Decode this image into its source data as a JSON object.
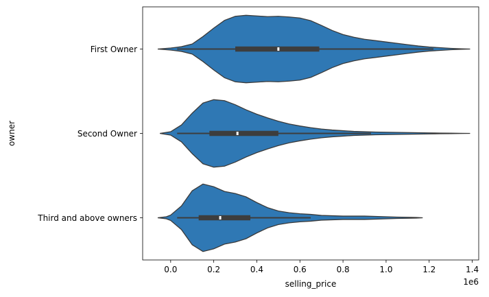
{
  "chart_data": {
    "type": "violin",
    "orientation": "horizontal",
    "xlabel": "selling_price",
    "ylabel": "owner",
    "x_offset_label": "1e6",
    "xlim": [
      -0.13,
      1.43
    ],
    "xticks": [
      0.0,
      0.2,
      0.4,
      0.6,
      0.8,
      1.0,
      1.2,
      1.4
    ],
    "xtick_labels": [
      "0.0",
      "0.2",
      "0.4",
      "0.6",
      "0.8",
      "1.0",
      "1.2",
      "1.4"
    ],
    "categories": [
      "First Owner",
      "Second Owner",
      "Third and above owners"
    ],
    "fill_color": "#2f78b4",
    "edge_color": "#3a3a3a",
    "box_color": "#3d3d3d",
    "median_color": "#ffffff",
    "grid": false,
    "legend": "none",
    "violins": [
      {
        "name": "First Owner",
        "density": [
          [
            -0.06,
            0
          ],
          [
            0.0,
            0.03
          ],
          [
            0.05,
            0.07
          ],
          [
            0.1,
            0.15
          ],
          [
            0.15,
            0.37
          ],
          [
            0.2,
            0.62
          ],
          [
            0.25,
            0.85
          ],
          [
            0.3,
            0.97
          ],
          [
            0.35,
            1.0
          ],
          [
            0.4,
            0.98
          ],
          [
            0.45,
            0.96
          ],
          [
            0.5,
            0.97
          ],
          [
            0.55,
            0.95
          ],
          [
            0.6,
            0.92
          ],
          [
            0.65,
            0.84
          ],
          [
            0.7,
            0.7
          ],
          [
            0.75,
            0.55
          ],
          [
            0.8,
            0.43
          ],
          [
            0.85,
            0.35
          ],
          [
            0.9,
            0.29
          ],
          [
            0.95,
            0.25
          ],
          [
            1.0,
            0.21
          ],
          [
            1.05,
            0.17
          ],
          [
            1.1,
            0.13
          ],
          [
            1.15,
            0.09
          ],
          [
            1.2,
            0.06
          ],
          [
            1.25,
            0.04
          ],
          [
            1.3,
            0.02
          ],
          [
            1.35,
            0.006
          ],
          [
            1.39,
            0
          ]
        ],
        "whisker": [
          0.03,
          1.22
        ],
        "q1": 0.3,
        "q3": 0.69,
        "median": 0.5
      },
      {
        "name": "Second Owner",
        "density": [
          [
            -0.05,
            0
          ],
          [
            0.0,
            0.05
          ],
          [
            0.05,
            0.25
          ],
          [
            0.1,
            0.6
          ],
          [
            0.15,
            0.9
          ],
          [
            0.2,
            1.0
          ],
          [
            0.25,
            0.97
          ],
          [
            0.3,
            0.85
          ],
          [
            0.35,
            0.7
          ],
          [
            0.4,
            0.57
          ],
          [
            0.45,
            0.46
          ],
          [
            0.5,
            0.36
          ],
          [
            0.55,
            0.28
          ],
          [
            0.6,
            0.22
          ],
          [
            0.65,
            0.17
          ],
          [
            0.7,
            0.13
          ],
          [
            0.75,
            0.1
          ],
          [
            0.8,
            0.08
          ],
          [
            0.85,
            0.06
          ],
          [
            0.9,
            0.05
          ],
          [
            0.95,
            0.04
          ],
          [
            1.0,
            0.035
          ],
          [
            1.05,
            0.03
          ],
          [
            1.1,
            0.025
          ],
          [
            1.15,
            0.02
          ],
          [
            1.2,
            0.015
          ],
          [
            1.25,
            0.01
          ],
          [
            1.3,
            0.006
          ],
          [
            1.35,
            0.003
          ],
          [
            1.39,
            0
          ]
        ],
        "whisker": [
          0.03,
          0.93
        ],
        "q1": 0.18,
        "q3": 0.5,
        "median": 0.31
      },
      {
        "name": "Third and above owners",
        "density": [
          [
            -0.06,
            0
          ],
          [
            -0.02,
            0.03
          ],
          [
            0.0,
            0.08
          ],
          [
            0.05,
            0.35
          ],
          [
            0.1,
            0.8
          ],
          [
            0.15,
            1.0
          ],
          [
            0.2,
            0.92
          ],
          [
            0.25,
            0.78
          ],
          [
            0.3,
            0.72
          ],
          [
            0.35,
            0.62
          ],
          [
            0.4,
            0.45
          ],
          [
            0.45,
            0.3
          ],
          [
            0.5,
            0.2
          ],
          [
            0.55,
            0.15
          ],
          [
            0.6,
            0.12
          ],
          [
            0.65,
            0.1
          ],
          [
            0.7,
            0.07
          ],
          [
            0.75,
            0.06
          ],
          [
            0.8,
            0.05
          ],
          [
            0.85,
            0.05
          ],
          [
            0.9,
            0.05
          ],
          [
            0.95,
            0.04
          ],
          [
            1.0,
            0.03
          ],
          [
            1.05,
            0.02
          ],
          [
            1.1,
            0.015
          ],
          [
            1.14,
            0.01
          ],
          [
            1.17,
            0
          ]
        ],
        "whisker": [
          0.03,
          0.65
        ],
        "q1": 0.13,
        "q3": 0.37,
        "median": 0.23
      }
    ]
  }
}
